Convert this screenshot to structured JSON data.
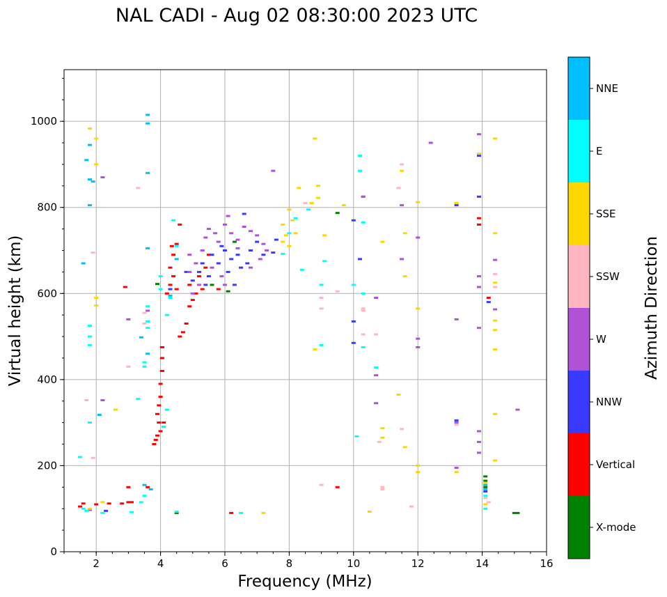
{
  "chart_data": {
    "type": "scatter",
    "title": "NAL CADI - Aug 02 08:30:00 2023 UTC",
    "xlabel": "Frequency (MHz)",
    "ylabel": "Virtual height (km)",
    "xlim": [
      1,
      16
    ],
    "ylim": [
      0,
      1120
    ],
    "xticks": [
      2,
      4,
      6,
      8,
      10,
      12,
      14,
      16
    ],
    "yticks": [
      0,
      200,
      400,
      600,
      800,
      1000
    ],
    "grid": true,
    "colorbar": {
      "label": "Azimuth Direction",
      "categories": [
        {
          "name": "X-mode",
          "color": "#008000"
        },
        {
          "name": "Vertical",
          "color": "#ff0000"
        },
        {
          "name": "NNW",
          "color": "#3a3aff"
        },
        {
          "name": "W",
          "color": "#b152d6"
        },
        {
          "name": "SSW",
          "color": "#ffb6c1"
        },
        {
          "name": "SSE",
          "color": "#ffd700"
        },
        {
          "name": "E",
          "color": "#00ffff"
        },
        {
          "name": "NNE",
          "color": "#00bfff"
        }
      ]
    },
    "series": [
      {
        "name": "X-mode",
        "points": [
          [
            4.5,
            90
          ],
          [
            5.6,
            620
          ],
          [
            6.1,
            605
          ],
          [
            5.3,
            700
          ],
          [
            6.3,
            720
          ],
          [
            9.5,
            787
          ],
          [
            14.1,
            175
          ],
          [
            14.1,
            165
          ],
          [
            14.1,
            150
          ],
          [
            15.0,
            90
          ],
          [
            15.1,
            90
          ],
          [
            3.9,
            622
          ]
        ]
      },
      {
        "name": "Vertical",
        "points": [
          [
            1.5,
            105
          ],
          [
            1.6,
            112
          ],
          [
            2.0,
            110
          ],
          [
            2.4,
            112
          ],
          [
            2.8,
            112
          ],
          [
            3.1,
            115
          ],
          [
            3.0,
            150
          ],
          [
            3.0,
            115
          ],
          [
            3.6,
            150
          ],
          [
            3.8,
            250
          ],
          [
            3.85,
            260
          ],
          [
            3.9,
            270
          ],
          [
            3.95,
            300
          ],
          [
            3.9,
            320
          ],
          [
            3.95,
            340
          ],
          [
            4.0,
            360
          ],
          [
            4.0,
            390
          ],
          [
            4.05,
            420
          ],
          [
            4.05,
            450
          ],
          [
            4.05,
            475
          ],
          [
            4.1,
            300
          ],
          [
            4.0,
            280
          ],
          [
            4.1,
            290
          ],
          [
            4.2,
            600
          ],
          [
            4.3,
            620
          ],
          [
            4.4,
            640
          ],
          [
            4.5,
            610
          ],
          [
            4.3,
            660
          ],
          [
            4.4,
            690
          ],
          [
            4.5,
            715
          ],
          [
            4.35,
            710
          ],
          [
            4.6,
            760
          ],
          [
            4.6,
            500
          ],
          [
            4.7,
            510
          ],
          [
            4.8,
            530
          ],
          [
            4.9,
            570
          ],
          [
            5.0,
            585
          ],
          [
            4.9,
            620
          ],
          [
            5.1,
            600
          ],
          [
            5.2,
            640
          ],
          [
            5.3,
            610
          ],
          [
            5.4,
            660
          ],
          [
            5.5,
            690
          ],
          [
            5.8,
            610
          ],
          [
            6.2,
            90
          ],
          [
            9.5,
            150
          ],
          [
            11.4,
            365
          ],
          [
            13.9,
            775
          ],
          [
            13.9,
            760
          ],
          [
            14.2,
            590
          ],
          [
            2.9,
            615
          ]
        ]
      },
      {
        "name": "NNW",
        "points": [
          [
            5.0,
            630
          ],
          [
            5.2,
            650
          ],
          [
            5.3,
            670
          ],
          [
            5.5,
            640
          ],
          [
            5.6,
            690
          ],
          [
            5.8,
            670
          ],
          [
            6.0,
            700
          ],
          [
            6.2,
            680
          ],
          [
            6.4,
            690
          ],
          [
            6.5,
            660
          ],
          [
            6.7,
            670
          ],
          [
            6.6,
            785
          ],
          [
            7.0,
            720
          ],
          [
            7.2,
            690
          ],
          [
            7.5,
            695
          ],
          [
            4.8,
            650
          ],
          [
            5.9,
            710
          ],
          [
            6.1,
            650
          ],
          [
            5.4,
            620
          ],
          [
            6.8,
            700
          ],
          [
            7.6,
            725
          ],
          [
            10.0,
            535
          ],
          [
            10.0,
            770
          ],
          [
            10.2,
            680
          ],
          [
            10.3,
            825
          ],
          [
            10.0,
            485
          ],
          [
            13.2,
            805
          ],
          [
            13.2,
            305
          ],
          [
            13.9,
            825
          ],
          [
            13.9,
            920
          ],
          [
            14.2,
            580
          ],
          [
            14.1,
            140
          ],
          [
            4.3,
            610
          ],
          [
            6.3,
            620
          ],
          [
            2.3,
            95
          ]
        ]
      },
      {
        "name": "W",
        "points": [
          [
            4.9,
            650
          ],
          [
            5.1,
            670
          ],
          [
            5.3,
            700
          ],
          [
            5.4,
            730
          ],
          [
            5.5,
            750
          ],
          [
            5.7,
            740
          ],
          [
            5.8,
            720
          ],
          [
            6.0,
            760
          ],
          [
            6.1,
            780
          ],
          [
            6.2,
            740
          ],
          [
            6.4,
            725
          ],
          [
            6.6,
            755
          ],
          [
            6.8,
            745
          ],
          [
            7.0,
            735
          ],
          [
            7.2,
            715
          ],
          [
            7.3,
            700
          ],
          [
            5.9,
            640
          ],
          [
            6.0,
            620
          ],
          [
            5.6,
            660
          ],
          [
            5.2,
            620
          ],
          [
            5.0,
            600
          ],
          [
            4.9,
            690
          ],
          [
            6.4,
            705
          ],
          [
            6.8,
            660
          ],
          [
            7.1,
            680
          ],
          [
            7.5,
            885
          ],
          [
            10.3,
            825
          ],
          [
            10.7,
            590
          ],
          [
            10.7,
            410
          ],
          [
            10.7,
            345
          ],
          [
            11.5,
            805
          ],
          [
            11.5,
            680
          ],
          [
            12.0,
            730
          ],
          [
            12.0,
            495
          ],
          [
            12.0,
            475
          ],
          [
            12.4,
            950
          ],
          [
            13.2,
            540
          ],
          [
            13.2,
            300
          ],
          [
            13.2,
            195
          ],
          [
            13.9,
            970
          ],
          [
            13.9,
            640
          ],
          [
            13.9,
            615
          ],
          [
            13.9,
            520
          ],
          [
            13.9,
            280
          ],
          [
            13.9,
            255
          ],
          [
            13.9,
            230
          ],
          [
            14.4,
            678
          ],
          [
            14.4,
            563
          ],
          [
            15.1,
            330
          ],
          [
            3.0,
            540
          ],
          [
            3.6,
            560
          ],
          [
            2.2,
            870
          ],
          [
            1.8,
            97
          ],
          [
            2.2,
            352
          ]
        ]
      },
      {
        "name": "SSW",
        "points": [
          [
            1.9,
            695
          ],
          [
            3.3,
            845
          ],
          [
            3.5,
            555
          ],
          [
            3.5,
            530
          ],
          [
            1.7,
            352
          ],
          [
            1.9,
            218
          ],
          [
            3.0,
            430
          ],
          [
            8.5,
            810
          ],
          [
            9.0,
            590
          ],
          [
            9.0,
            155
          ],
          [
            9.5,
            605
          ],
          [
            9.0,
            565
          ],
          [
            10.3,
            560
          ],
          [
            10.3,
            565
          ],
          [
            10.7,
            505
          ],
          [
            10.8,
            255
          ],
          [
            10.9,
            150
          ],
          [
            11.4,
            845
          ],
          [
            11.5,
            900
          ],
          [
            11.5,
            285
          ],
          [
            11.8,
            105
          ],
          [
            13.2,
            295
          ],
          [
            14.1,
            125
          ],
          [
            14.4,
            615
          ],
          [
            14.4,
            645
          ],
          [
            14.2,
            115
          ],
          [
            10.9,
            145
          ],
          [
            10.3,
            505
          ]
        ]
      },
      {
        "name": "SSE",
        "points": [
          [
            1.8,
            983
          ],
          [
            2.0,
            900
          ],
          [
            2.0,
            960
          ],
          [
            2.0,
            590
          ],
          [
            2.0,
            572
          ],
          [
            1.8,
            100
          ],
          [
            2.2,
            115
          ],
          [
            2.6,
            330
          ],
          [
            7.8,
            720
          ],
          [
            7.8,
            760
          ],
          [
            8.0,
            795
          ],
          [
            8.1,
            770
          ],
          [
            8.2,
            740
          ],
          [
            8.3,
            845
          ],
          [
            8.7,
            810
          ],
          [
            8.8,
            960
          ],
          [
            8.9,
            850
          ],
          [
            8.9,
            822
          ],
          [
            8.8,
            470
          ],
          [
            9.1,
            735
          ],
          [
            9.7,
            805
          ],
          [
            10.5,
            93
          ],
          [
            10.9,
            720
          ],
          [
            10.9,
            287
          ],
          [
            10.9,
            265
          ],
          [
            11.4,
            365
          ],
          [
            11.5,
            885
          ],
          [
            11.6,
            740
          ],
          [
            11.6,
            640
          ],
          [
            11.6,
            243
          ],
          [
            12.0,
            812
          ],
          [
            12.0,
            565
          ],
          [
            12.0,
            200
          ],
          [
            12.0,
            185
          ],
          [
            13.2,
            810
          ],
          [
            13.2,
            185
          ],
          [
            13.9,
            925
          ],
          [
            14.4,
            960
          ],
          [
            14.4,
            740
          ],
          [
            14.4,
            625
          ],
          [
            14.4,
            537
          ],
          [
            14.4,
            515
          ],
          [
            14.4,
            470
          ],
          [
            14.4,
            320
          ],
          [
            14.4,
            212
          ],
          [
            14.1,
            160
          ],
          [
            14.1,
            110
          ],
          [
            7.2,
            90
          ],
          [
            8.0,
            710
          ],
          [
            7.9,
            735
          ]
        ]
      },
      {
        "name": "E",
        "points": [
          [
            1.5,
            220
          ],
          [
            1.6,
            100
          ],
          [
            1.7,
            95
          ],
          [
            1.8,
            525
          ],
          [
            1.8,
            500
          ],
          [
            1.8,
            480
          ],
          [
            2.2,
            90
          ],
          [
            3.1,
            92
          ],
          [
            3.5,
            440
          ],
          [
            3.5,
            430
          ],
          [
            3.6,
            535
          ],
          [
            3.6,
            570
          ],
          [
            3.6,
            520
          ],
          [
            3.4,
            115
          ],
          [
            3.5,
            130
          ],
          [
            3.3,
            355
          ],
          [
            4.0,
            610
          ],
          [
            4.0,
            640
          ],
          [
            4.2,
            550
          ],
          [
            4.3,
            590
          ],
          [
            4.5,
            93
          ],
          [
            4.1,
            290
          ],
          [
            4.2,
            330
          ],
          [
            4.4,
            770
          ],
          [
            4.5,
            710
          ],
          [
            6.5,
            90
          ],
          [
            7.8,
            692
          ],
          [
            8.0,
            740
          ],
          [
            8.2,
            775
          ],
          [
            8.4,
            655
          ],
          [
            8.6,
            795
          ],
          [
            9.1,
            675
          ],
          [
            9.0,
            620
          ],
          [
            9.0,
            480
          ],
          [
            10.0,
            620
          ],
          [
            10.2,
            920
          ],
          [
            10.2,
            885
          ],
          [
            10.3,
            765
          ],
          [
            10.3,
            600
          ],
          [
            10.3,
            475
          ],
          [
            10.7,
            428
          ],
          [
            10.1,
            268
          ],
          [
            14.1,
            100
          ],
          [
            14.1,
            130
          ],
          [
            1.8,
            300
          ]
        ]
      },
      {
        "name": "NNE",
        "points": [
          [
            1.6,
            670
          ],
          [
            1.7,
            910
          ],
          [
            1.8,
            945
          ],
          [
            1.8,
            865
          ],
          [
            1.8,
            805
          ],
          [
            1.9,
            860
          ],
          [
            2.1,
            318
          ],
          [
            3.6,
            1015
          ],
          [
            3.6,
            995
          ],
          [
            3.6,
            880
          ],
          [
            3.6,
            705
          ],
          [
            3.6,
            460
          ],
          [
            3.4,
            498
          ],
          [
            3.5,
            155
          ],
          [
            3.7,
            145
          ],
          [
            4.3,
            595
          ],
          [
            4.5,
            680
          ],
          [
            14.1,
            145
          ],
          [
            14.1,
            155
          ]
        ]
      }
    ]
  }
}
